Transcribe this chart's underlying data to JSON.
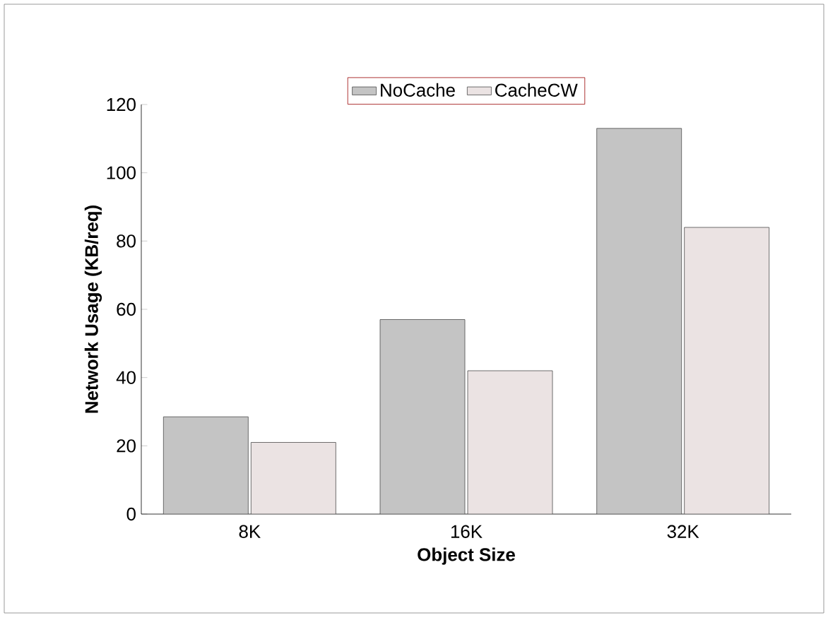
{
  "chart_data": {
    "type": "bar",
    "xlabel": "Object Size",
    "ylabel": "Network Usage (KB/req)",
    "categories": [
      "8K",
      "16K",
      "32K"
    ],
    "series": [
      {
        "name": "NoCache",
        "color": "#c4c4c4",
        "values": [
          28.5,
          57,
          113
        ]
      },
      {
        "name": "CacheCW",
        "color": "#ebe3e3",
        "values": [
          21,
          42,
          84
        ]
      }
    ],
    "ylim": [
      0,
      120
    ],
    "yticks": [
      0,
      20,
      40,
      60,
      80,
      100,
      120
    ],
    "grid": false,
    "legend": "top"
  }
}
